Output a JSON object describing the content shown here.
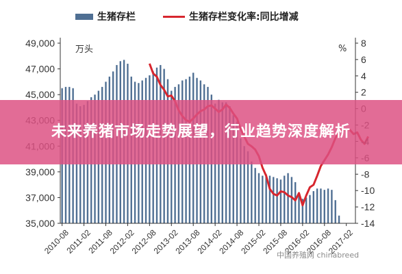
{
  "banner": {
    "title": "未来养猪市场走势展望，行业趋势深度解析"
  },
  "watermark": {
    "text": "中国养殖网 chinabreed"
  },
  "colors": {
    "bar": "#4f6f93",
    "line": "#d7262e",
    "banner": "#dd5082",
    "grid": "#e6e6e6"
  },
  "chart_data": {
    "type": "bar",
    "legend": [
      {
        "name": "生猪存栏",
        "kind": "bar"
      },
      {
        "name": "生猪存栏变化率:同比增减",
        "kind": "line"
      }
    ],
    "legend_position": "top",
    "left_unit": "万头",
    "right_unit": "%",
    "grid": false,
    "left_axis": {
      "ylim": [
        35000,
        49000
      ],
      "ticks": [
        "35,000",
        "37,000",
        "39,000",
        "41,000",
        "43,000",
        "45,000",
        "47,000",
        "49,000"
      ]
    },
    "right_axis": {
      "ylim": [
        -14,
        8
      ],
      "ticks": [
        "-14",
        "-12",
        "-10",
        "-8",
        "-6",
        "-4",
        "-2",
        "0",
        "2",
        "4",
        "6",
        "8"
      ]
    },
    "x_tick_labels": [
      "2010-08",
      "2011-02",
      "2011-08",
      "2012-02",
      "2012-08",
      "2013-02",
      "2013-08",
      "2014-02",
      "2014-08",
      "2015-02",
      "2015-08",
      "2016-02",
      "2016-08",
      "2017-02"
    ],
    "series": [
      {
        "name": "生猪存栏",
        "axis": "left",
        "start": "2010-08",
        "values": [
          45500,
          45600,
          45600,
          45500,
          44300,
          44100,
          44200,
          44500,
          44800,
          45000,
          45300,
          45600,
          46000,
          46400,
          46800,
          47300,
          47600,
          47700,
          47400,
          46400,
          46000,
          45900,
          46100,
          46300,
          46500,
          46800,
          47100,
          47300,
          47000,
          46200,
          45300,
          45600,
          45800,
          46100,
          46200,
          46400,
          46700,
          46300,
          46100,
          45800,
          45600,
          45000,
          44300,
          44600,
          44400,
          44400,
          44100,
          43400,
          42900,
          41600,
          41000,
          40600,
          39800,
          39300,
          38900,
          38700,
          38800,
          38700,
          38600,
          38500,
          38400,
          38700,
          38900,
          38600,
          38200,
          37200,
          36900,
          37000,
          37200,
          37500,
          37700,
          37700,
          37600,
          37700,
          37600,
          36800,
          35600
        ]
      },
      {
        "name": "生猪存栏变化率:同比增减",
        "axis": "right",
        "start": "2012-08",
        "values": [
          5.5,
          4.3,
          3.9,
          2.9,
          2.3,
          1.5,
          1.6,
          0.9,
          -0.2,
          -0.9,
          -1.4,
          -1.6,
          -1.2,
          -0.7,
          -0.3,
          -0.1,
          0.3,
          0.4,
          0.0,
          -0.4,
          -0.1,
          0.5,
          0.1,
          -0.6,
          -1.2,
          -2.5,
          -3.4,
          -4.3,
          -4.6,
          -5.0,
          -5.8,
          -7.2,
          -8.2,
          -9.8,
          -10.4,
          -10.6,
          -10.1,
          -10.2,
          -10.6,
          -10.8,
          -11.2,
          -10.3,
          -11.8,
          -10.6,
          -9.6,
          -9.3,
          -8.2,
          -7.0,
          -6.3,
          -5.6,
          -4.7,
          -3.6,
          -2.8,
          -2.6,
          -2.5,
          -2.6,
          -3.1,
          -2.9,
          -3.8,
          -4.3,
          -3.4
        ]
      }
    ]
  }
}
